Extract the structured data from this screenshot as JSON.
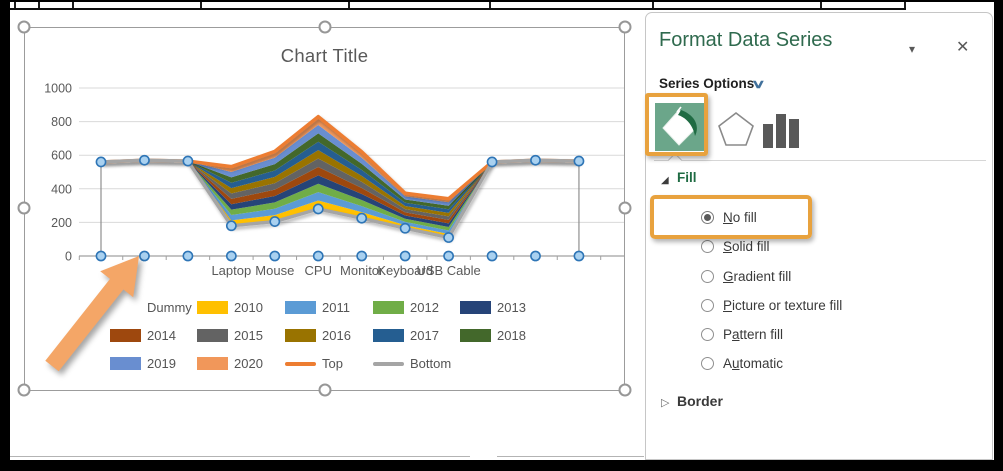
{
  "chart_data": {
    "type": "area",
    "stacking": "stacked",
    "title": "Chart Title",
    "categories": [
      "",
      "",
      "",
      "Laptop",
      "Mouse",
      "CPU",
      "Monitor",
      "Keyboard",
      "USB Cable",
      "",
      "",
      ""
    ],
    "y_axis": {
      "min": 0,
      "max": 1000,
      "tick_interval": 200,
      "ticks": [
        0,
        200,
        400,
        600,
        800,
        1000
      ]
    },
    "grid": true,
    "legend_position": "bottom",
    "series": [
      {
        "name": "Dummy",
        "role": "stack-base",
        "fill": "none",
        "legend_swatch": "none",
        "values": [
          560,
          570,
          565,
          180,
          205,
          280,
          225,
          165,
          110,
          560,
          570,
          565
        ]
      },
      {
        "name": "2010",
        "role": "stack",
        "color": "#FFC000",
        "legend_swatch": "patch",
        "values": [
          0,
          0,
          0,
          32,
          38,
          50,
          36,
          19,
          21,
          0,
          0,
          0
        ]
      },
      {
        "name": "2011",
        "role": "stack",
        "color": "#5B9BD5",
        "legend_swatch": "patch",
        "values": [
          0,
          0,
          0,
          32,
          38,
          50,
          36,
          19,
          21,
          0,
          0,
          0
        ]
      },
      {
        "name": "2012",
        "role": "stack",
        "color": "#70AD47",
        "legend_swatch": "patch",
        "values": [
          0,
          0,
          0,
          32,
          38,
          50,
          36,
          19,
          21,
          0,
          0,
          0
        ]
      },
      {
        "name": "2013",
        "role": "stack",
        "color": "#264478",
        "legend_swatch": "patch",
        "values": [
          0,
          0,
          0,
          32,
          38,
          50,
          36,
          19,
          21,
          0,
          0,
          0
        ]
      },
      {
        "name": "2014",
        "role": "stack",
        "color": "#9E480E",
        "legend_swatch": "patch",
        "values": [
          0,
          0,
          0,
          32,
          38,
          50,
          36,
          19,
          21,
          0,
          0,
          0
        ]
      },
      {
        "name": "2015",
        "role": "stack",
        "color": "#636363",
        "legend_swatch": "patch",
        "values": [
          0,
          0,
          0,
          32,
          38,
          50,
          36,
          19,
          21,
          0,
          0,
          0
        ]
      },
      {
        "name": "2016",
        "role": "stack",
        "color": "#997300",
        "legend_swatch": "patch",
        "values": [
          0,
          0,
          0,
          32,
          38,
          50,
          36,
          19,
          21,
          0,
          0,
          0
        ]
      },
      {
        "name": "2017",
        "role": "stack",
        "color": "#255E91",
        "legend_swatch": "patch",
        "values": [
          0,
          0,
          0,
          32,
          38,
          50,
          36,
          19,
          21,
          0,
          0,
          0
        ]
      },
      {
        "name": "2018",
        "role": "stack",
        "color": "#43682B",
        "legend_swatch": "patch",
        "values": [
          0,
          0,
          0,
          32,
          38,
          50,
          36,
          19,
          21,
          0,
          0,
          0
        ]
      },
      {
        "name": "2019",
        "role": "stack",
        "color": "#698ED0",
        "legend_swatch": "patch",
        "values": [
          0,
          0,
          0,
          32,
          38,
          50,
          36,
          19,
          21,
          0,
          0,
          0
        ]
      },
      {
        "name": "2020",
        "role": "stack",
        "color": "#F1975A",
        "legend_swatch": "patch",
        "values": [
          0,
          0,
          0,
          32,
          38,
          50,
          36,
          19,
          21,
          0,
          0,
          0
        ]
      },
      {
        "name": "Top",
        "role": "line",
        "color": "#ED7D31",
        "legend_swatch": "line",
        "values": [
          560,
          570,
          565,
          532,
          623,
          830,
          621,
          374,
          341,
          560,
          570,
          565
        ]
      },
      {
        "name": "Bottom",
        "role": "line",
        "color": "#A5A5A5",
        "legend_swatch": "line",
        "values": [
          560,
          570,
          565,
          180,
          205,
          280,
          225,
          165,
          110,
          560,
          570,
          565
        ]
      }
    ],
    "selected_point_markers": {
      "fill": "#A9D1F0",
      "stroke": "#2E75B6"
    }
  },
  "panel": {
    "title": "Format Data Series",
    "series_options_label": "Series Options",
    "icons": {
      "dropdown": "▾",
      "close": "✕",
      "chevron_down": "∨",
      "section_expanded": "◢",
      "section_collapsed": "▷"
    },
    "fill_section": {
      "header": "Fill",
      "options": [
        {
          "pre": "",
          "key": "N",
          "post": "o fill",
          "selected": true
        },
        {
          "pre": "",
          "key": "S",
          "post": "olid fill",
          "selected": false
        },
        {
          "pre": "",
          "key": "G",
          "post": "radient fill",
          "selected": false
        },
        {
          "pre": "",
          "key": "P",
          "post": "icture or texture fill",
          "selected": false
        },
        {
          "pre": "P",
          "key": "a",
          "post": "ttern fill",
          "selected": false
        },
        {
          "pre": "A",
          "key": "u",
          "post": "tomatic",
          "selected": false
        }
      ]
    },
    "border_section": {
      "header": "Border"
    }
  },
  "annotation_colors": {
    "highlight_box": "#E8A23E",
    "arrow": "#F4A667"
  }
}
